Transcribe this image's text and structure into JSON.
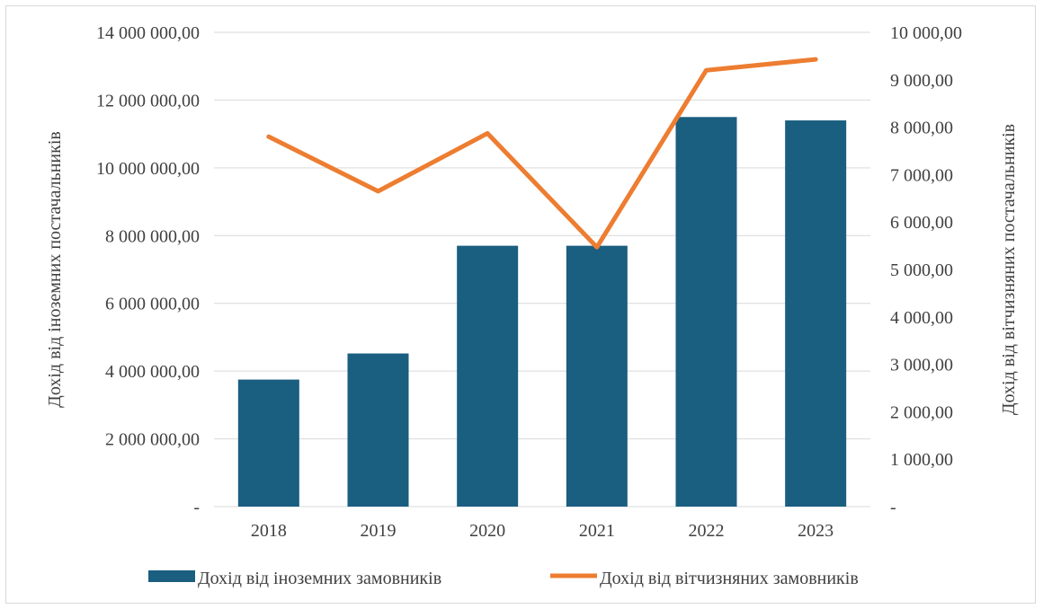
{
  "chart_data": {
    "type": "bar",
    "categories": [
      "2018",
      "2019",
      "2020",
      "2021",
      "2022",
      "2023"
    ],
    "series": [
      {
        "name": "Дохід від іноземних замовників",
        "type": "bar",
        "axis": "left",
        "color": "#1a5e80",
        "values": [
          3750000,
          4520000,
          7700000,
          7700000,
          11500000,
          11400000
        ]
      },
      {
        "name": "Дохід від вітчизняних замовників",
        "type": "line",
        "axis": "right",
        "color": "#ed7d31",
        "values": [
          7800,
          6650,
          7870,
          5470,
          9200,
          9430
        ]
      }
    ],
    "ylabel": "Дохід від іноземних постачальників",
    "y2label": "Дохід від вітчизняних постачальників",
    "ylim": [
      0,
      14000000
    ],
    "y2lim": [
      0,
      10000
    ],
    "yticks": [
      {
        "value": 0,
        "label": "-"
      },
      {
        "value": 2000000,
        "label": "2 000 000,00"
      },
      {
        "value": 4000000,
        "label": "4 000 000,00"
      },
      {
        "value": 6000000,
        "label": "6 000 000,00"
      },
      {
        "value": 8000000,
        "label": "8 000 000,00"
      },
      {
        "value": 10000000,
        "label": "10 000 000,00"
      },
      {
        "value": 12000000,
        "label": "12 000 000,00"
      },
      {
        "value": 14000000,
        "label": "14 000 000,00"
      }
    ],
    "y2ticks": [
      {
        "value": 0,
        "label": "-"
      },
      {
        "value": 1000,
        "label": "1 000,00"
      },
      {
        "value": 2000,
        "label": "2 000,00"
      },
      {
        "value": 3000,
        "label": "3 000,00"
      },
      {
        "value": 4000,
        "label": "4 000,00"
      },
      {
        "value": 5000,
        "label": "5 000,00"
      },
      {
        "value": 6000,
        "label": "6 000,00"
      },
      {
        "value": 7000,
        "label": "7 000,00"
      },
      {
        "value": 8000,
        "label": "8 000,00"
      },
      {
        "value": 9000,
        "label": "9 000,00"
      },
      {
        "value": 10000,
        "label": "10 000,00"
      }
    ],
    "grid": true,
    "legend_position": "bottom",
    "colors": {
      "gridline": "#d9d9d9",
      "text": "#404040"
    }
  }
}
